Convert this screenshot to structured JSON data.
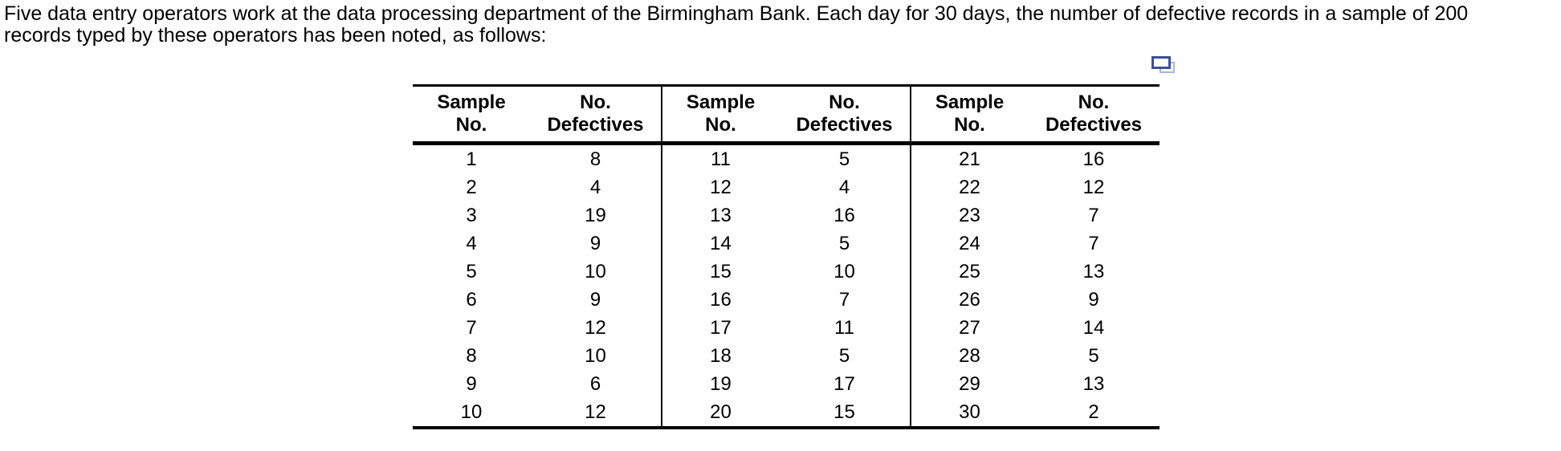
{
  "intro": {
    "lines": [
      "Five data entry operators work at the data processing department of the Birmingham Bank. Each day for 30 days, the number of defective records in a sample of 200",
      "records typed by these operators has been noted, as follows:"
    ]
  },
  "icon": {
    "name": "duplicate-window",
    "front_color": "#3A4F9B",
    "back_color": "#A9B4D9"
  },
  "table": {
    "header": {
      "sample_line1": "Sample",
      "sample_line2": "No.",
      "defectives_line1": "No.",
      "defectives_line2": "Defectives"
    },
    "groups": [
      {
        "rows": [
          [
            "1",
            "8"
          ],
          [
            "2",
            "4"
          ],
          [
            "3",
            "19"
          ],
          [
            "4",
            "9"
          ],
          [
            "5",
            "10"
          ],
          [
            "6",
            "9"
          ],
          [
            "7",
            "12"
          ],
          [
            "8",
            "10"
          ],
          [
            "9",
            "6"
          ],
          [
            "10",
            "12"
          ]
        ]
      },
      {
        "rows": [
          [
            "11",
            "5"
          ],
          [
            "12",
            "4"
          ],
          [
            "13",
            "16"
          ],
          [
            "14",
            "5"
          ],
          [
            "15",
            "10"
          ],
          [
            "16",
            "7"
          ],
          [
            "17",
            "11"
          ],
          [
            "18",
            "5"
          ],
          [
            "19",
            "17"
          ],
          [
            "20",
            "15"
          ]
        ]
      },
      {
        "rows": [
          [
            "21",
            "16"
          ],
          [
            "22",
            "12"
          ],
          [
            "23",
            "7"
          ],
          [
            "24",
            "7"
          ],
          [
            "25",
            "13"
          ],
          [
            "26",
            "9"
          ],
          [
            "27",
            "14"
          ],
          [
            "28",
            "5"
          ],
          [
            "29",
            "13"
          ],
          [
            "30",
            "2"
          ]
        ]
      }
    ]
  }
}
